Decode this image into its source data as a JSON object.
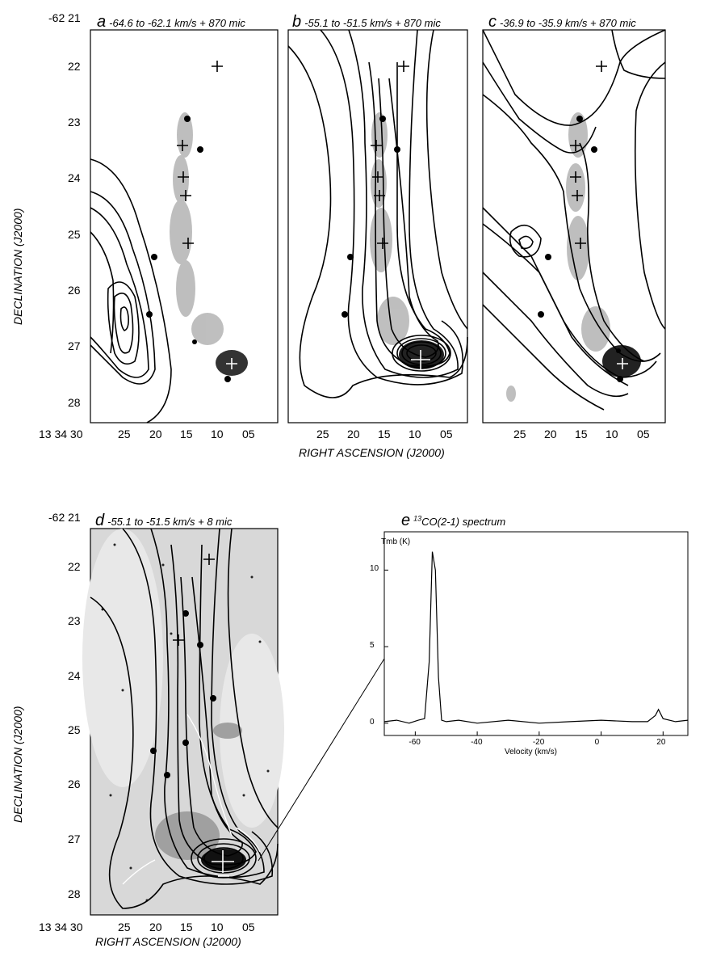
{
  "panels": {
    "a": {
      "letter": "a",
      "title": "-64.6 to -62.1 km/s + 870 mic"
    },
    "b": {
      "letter": "b",
      "title": "-55.1 to -51.5 km/s + 870 mic"
    },
    "c": {
      "letter": "c",
      "title": "-36.9 to -35.9 km/s + 870 mic"
    },
    "d": {
      "letter": "d",
      "title": "-55.1 to -51.5 km/s + 8 mic"
    },
    "e": {
      "letter": "e",
      "title_sup": "13",
      "title": "CO(2-1) spectrum"
    }
  },
  "top_dec_labels": [
    "-62 21",
    "22",
    "23",
    "24",
    "25",
    "26",
    "27",
    "28"
  ],
  "top_ra_labels": {
    "a": [
      "13 34 30",
      "25",
      "20",
      "15",
      "10",
      "05"
    ],
    "b": [
      "25",
      "20",
      "15",
      "10",
      "05"
    ],
    "c": [
      "25",
      "20",
      "15",
      "10",
      "05"
    ]
  },
  "bottom_dec_labels": [
    "-62 21",
    "22",
    "23",
    "24",
    "25",
    "26",
    "27",
    "28"
  ],
  "bottom_ra_labels": [
    "13 34 30",
    "25",
    "20",
    "15",
    "10",
    "05"
  ],
  "ylabel": "DECLINATION (J2000)",
  "xlabel": "RIGHT ASCENSION (J2000)",
  "chart_data": {
    "type": "line",
    "title": "13CO(2-1) spectrum",
    "xlabel": "Velocity  (km/s)",
    "ylabel": "Tmb (K)",
    "xlim": [
      -70,
      28
    ],
    "ylim": [
      -0.8,
      12.5
    ],
    "xticks": [
      "-60",
      "-40",
      "-20",
      "0",
      "20"
    ],
    "yticks": [
      "0",
      "5",
      "10"
    ],
    "x": [
      -70,
      -66,
      -62,
      -59,
      -57,
      -55.5,
      -54.5,
      -53.5,
      -52.5,
      -51.5,
      -50,
      -46,
      -40,
      -30,
      -20,
      -10,
      0,
      10,
      15,
      17.5,
      18.5,
      20,
      24,
      28
    ],
    "y": [
      0.1,
      0.2,
      0.0,
      0.2,
      0.3,
      4.0,
      11.2,
      10.0,
      3.0,
      0.2,
      0.1,
      0.2,
      0.0,
      0.2,
      0.0,
      0.1,
      0.2,
      0.1,
      0.1,
      0.5,
      0.9,
      0.3,
      0.1,
      0.2
    ]
  }
}
